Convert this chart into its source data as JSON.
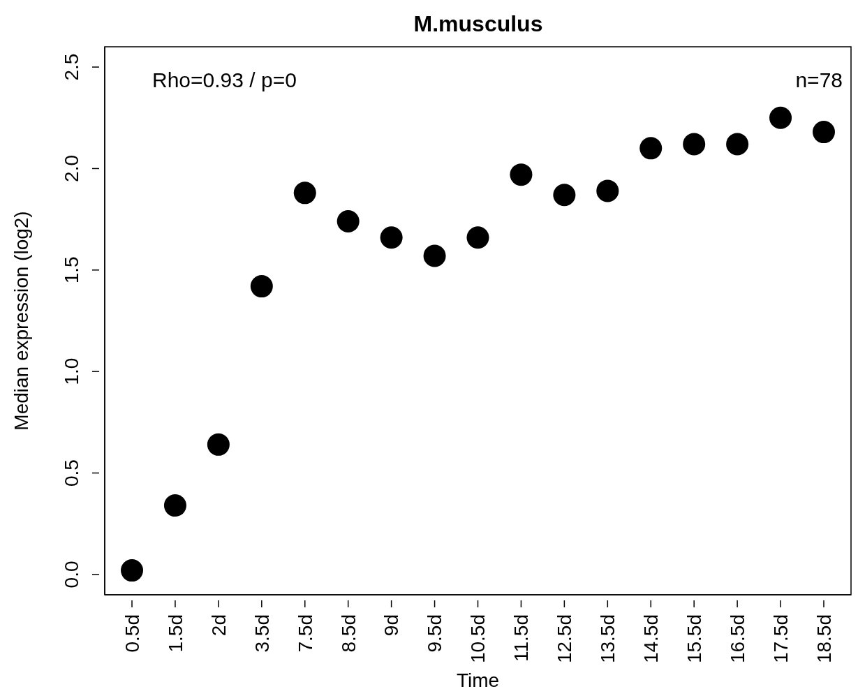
{
  "chart_data": {
    "type": "scatter",
    "title": "M.musculus",
    "xlabel": "Time",
    "ylabel": "Median expression (log2)",
    "categories": [
      "0.5d",
      "1.5d",
      "2d",
      "3.5d",
      "7.5d",
      "8.5d",
      "9d",
      "9.5d",
      "10.5d",
      "11.5d",
      "12.5d",
      "13.5d",
      "14.5d",
      "15.5d",
      "16.5d",
      "17.5d",
      "18.5d"
    ],
    "values": [
      0.02,
      0.34,
      0.64,
      1.42,
      1.88,
      1.74,
      1.66,
      1.57,
      1.66,
      1.97,
      1.87,
      1.89,
      2.1,
      2.12,
      2.12,
      2.25,
      2.18
    ],
    "color": "#000000",
    "marker": "circle",
    "grid": false,
    "legend": false,
    "ylim": [
      -0.1,
      2.6
    ],
    "yticks": [
      {
        "value": 0,
        "label": "0.0"
      },
      {
        "value": 0.5,
        "label": "0.5"
      },
      {
        "value": 1,
        "label": "1.0"
      },
      {
        "value": 1.5,
        "label": "1.5"
      },
      {
        "value": 2,
        "label": "2.0"
      },
      {
        "value": 2.5,
        "label": "2.5"
      }
    ],
    "annotations": [
      "Rho=0.93 / p=0",
      "n=78"
    ]
  }
}
